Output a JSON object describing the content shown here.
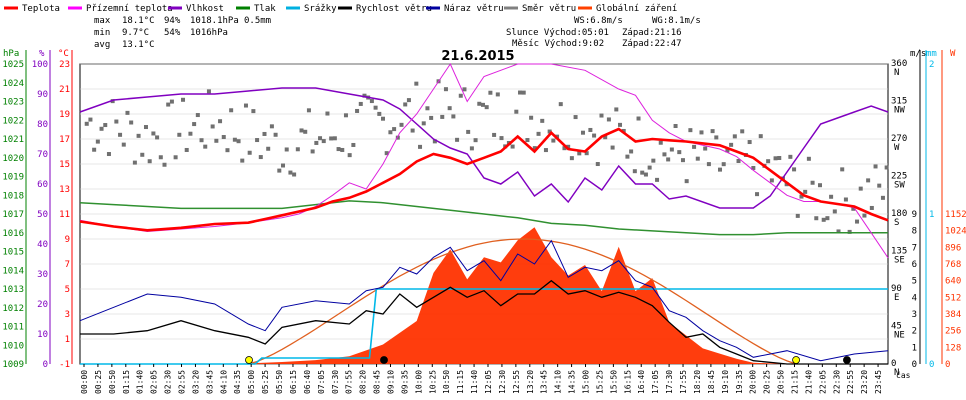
{
  "legend": [
    {
      "label": "Teplota",
      "color": "#ff0000"
    },
    {
      "label": "Přízemní teplota",
      "color": "#ff00ff"
    },
    {
      "label": "Vlhkost",
      "color": "#8000c0"
    },
    {
      "label": "Tlak",
      "color": "#008000"
    },
    {
      "label": "Srážky",
      "color": "#00b0e0"
    },
    {
      "label": "Rychlost větru",
      "color": "#000000"
    },
    {
      "label": "Náraz větru",
      "color": "#0000a0"
    },
    {
      "label": "Směr větru",
      "color": "#808080"
    },
    {
      "label": "Globální záření",
      "color": "#ff4000"
    }
  ],
  "stats": {
    "max_label": "max",
    "max_temp": "18.1°C",
    "max_hum": "94%",
    "max_press": "1018.1hPa",
    "rain": "0.5mm",
    "min_label": "min",
    "min_temp": "9.7°C",
    "min_hum": "54%",
    "min_press": "1016hPa",
    "avg_label": "avg",
    "avg_temp": "13.1°C",
    "ws": "WS:6.8m/s",
    "wg": "WG:8.1m/s",
    "sun": "Slunce Východ:05:01",
    "sun_set": "Západ:21:16",
    "moon": "Měsíc Východ:9:02",
    "moon_set": "Západ:22:47"
  },
  "colors": {
    "temp": "#ff0000",
    "ground": "#dd22dd",
    "hum": "#8000c0",
    "press": "#309030",
    "rain": "#00b8e8",
    "wind": "#000000",
    "gust": "#0000a0",
    "dir": "#707070",
    "rad": "#ff3300",
    "radcurve": "#e06020"
  },
  "chart_data": {
    "type": "line",
    "title": "21.6.2015",
    "xlabel": "čas",
    "x_ticks": [
      "00:00",
      "00:25",
      "00:50",
      "01:15",
      "01:40",
      "02:05",
      "02:30",
      "02:55",
      "03:20",
      "03:45",
      "04:10",
      "04:35",
      "05:00",
      "05:25",
      "05:50",
      "06:15",
      "06:40",
      "07:05",
      "07:30",
      "07:55",
      "08:20",
      "08:45",
      "09:10",
      "09:35",
      "10:00",
      "10:25",
      "10:50",
      "11:15",
      "11:40",
      "12:05",
      "12:30",
      "12:55",
      "13:20",
      "13:45",
      "14:10",
      "14:35",
      "15:00",
      "15:25",
      "15:50",
      "16:15",
      "16:40",
      "17:05",
      "17:30",
      "17:55",
      "18:20",
      "18:45",
      "19:10",
      "19:35",
      "20:00",
      "20:25",
      "20:50",
      "21:15",
      "21:40",
      "22:05",
      "22:30",
      "22:55",
      "23:20",
      "23:45"
    ],
    "axes": {
      "pressure": {
        "unit": "hPa",
        "range": [
          1009,
          1025
        ],
        "ticks": [
          "1025",
          "1024",
          "1023",
          "1022",
          "1021",
          "1020",
          "1019",
          "1018",
          "1017",
          "1016",
          "1015",
          "1014",
          "1013",
          "1012",
          "1011",
          "1010",
          "1009"
        ]
      },
      "humidity": {
        "unit": "%",
        "range": [
          0,
          100
        ],
        "ticks": [
          "100",
          "90",
          "80",
          "70",
          "60",
          "50",
          "40",
          "30",
          "20",
          "10",
          "0"
        ]
      },
      "temperature": {
        "unit": "°C",
        "range": [
          -1,
          23
        ],
        "ticks": [
          "23",
          "21",
          "19",
          "17",
          "15",
          "13",
          "11",
          "9",
          "7",
          "5",
          "3",
          "1",
          "-1"
        ]
      },
      "wind_direction": {
        "ticks": [
          "360 N",
          "315 NW",
          "270 W",
          "225 SW",
          "180 S",
          "135 SE",
          "90 E",
          "45 NE",
          "0 N"
        ]
      },
      "wind_speed": {
        "unit": "m/s",
        "range": [
          0,
          9
        ],
        "ticks": [
          "9",
          "8",
          "7",
          "6",
          "5",
          "4",
          "3",
          "2",
          "1",
          "0"
        ]
      },
      "rain": {
        "unit": "mm",
        "range": [
          0,
          2
        ],
        "ticks": [
          "2",
          "1",
          "0"
        ]
      },
      "radiation": {
        "unit": "W",
        "range": [
          0,
          1152
        ],
        "ticks": [
          "1152",
          "1024",
          "896",
          "768",
          "640",
          "512",
          "384",
          "256",
          "128",
          "0"
        ]
      }
    },
    "series": [
      {
        "name": "Teplota",
        "x_hours": [
          0,
          1,
          2,
          3,
          4,
          5,
          5.5,
          6,
          7,
          7.5,
          8,
          8.5,
          9,
          9.5,
          10,
          10.5,
          11,
          11.5,
          12,
          12.5,
          13,
          13.5,
          14,
          14.5,
          15,
          15.5,
          16,
          16.5,
          17,
          17.5,
          18,
          19,
          19.5,
          20,
          20.5,
          21,
          21.5,
          22,
          22.5,
          23,
          23.5,
          24
        ],
        "values": [
          10.4,
          10.0,
          9.7,
          9.9,
          10.2,
          10.3,
          10.6,
          10.9,
          11.5,
          12.0,
          12.3,
          12.8,
          13.5,
          14.2,
          15.2,
          15.8,
          15.5,
          15.0,
          15.5,
          16.0,
          17.2,
          16.0,
          17.5,
          16.2,
          16.0,
          17.2,
          17.8,
          16.8,
          17.0,
          16.9,
          16.8,
          16.5,
          16.0,
          15.5,
          14.5,
          13.5,
          12.5,
          12.0,
          11.8,
          11.6,
          11.0,
          10.5
        ]
      },
      {
        "name": "Přízemní teplota",
        "x_hours": [
          0,
          1,
          2,
          3,
          4,
          5,
          6,
          6.5,
          7,
          7.5,
          8,
          8.5,
          9,
          9.5,
          10,
          10.5,
          11,
          11.5,
          12,
          13,
          14,
          15,
          16,
          16.5,
          17,
          17.5,
          18,
          19,
          19.5,
          20,
          20.5,
          21,
          21.5,
          22,
          22.5,
          23,
          23.5,
          24
        ],
        "values": [
          10.5,
          10.0,
          9.6,
          9.8,
          10.0,
          10.3,
          10.7,
          11.0,
          11.6,
          12.5,
          13.5,
          13.0,
          15.0,
          17.5,
          19.0,
          21.0,
          23.0,
          20.0,
          22.0,
          23.0,
          23.0,
          22.5,
          21.0,
          20.5,
          18.5,
          17.5,
          16.8,
          16.2,
          15.6,
          14.5,
          13.5,
          12.5,
          12.0,
          12.0,
          11.8,
          11.5,
          9.5,
          7.5
        ]
      },
      {
        "name": "Vlhkost",
        "x_hours": [
          0,
          1,
          2,
          3,
          4,
          5,
          6,
          7,
          8,
          9,
          9.5,
          10,
          10.5,
          11,
          11.5,
          12,
          12.5,
          13,
          13.5,
          14,
          14.5,
          15,
          15.5,
          16,
          16.5,
          17,
          17.5,
          18,
          19,
          20,
          20.5,
          21,
          21.5,
          22,
          22.5,
          23,
          23.5,
          24
        ],
        "values": [
          84,
          88,
          89,
          90,
          90,
          91,
          92,
          92,
          90,
          88,
          85,
          80,
          75,
          72,
          70,
          62,
          60,
          64,
          56,
          60,
          54,
          62,
          58,
          66,
          60,
          60,
          55,
          56,
          52,
          52,
          56,
          64,
          72,
          80,
          82,
          84,
          86,
          84
        ]
      },
      {
        "name": "Tlak",
        "x_hours": [
          0,
          1,
          2,
          3,
          4,
          5,
          6,
          7,
          8,
          9,
          10,
          11,
          12,
          13,
          14,
          15,
          16,
          17,
          18,
          19,
          20,
          21,
          22,
          23,
          24
        ],
        "values": [
          1017.6,
          1017.5,
          1017.4,
          1017.3,
          1017.3,
          1017.3,
          1017.3,
          1017.5,
          1017.7,
          1017.6,
          1017.4,
          1017.2,
          1017.0,
          1016.8,
          1016.5,
          1016.4,
          1016.2,
          1016.1,
          1016.0,
          1015.9,
          1015.9,
          1016.0,
          1016.0,
          1016.0,
          1016.0
        ]
      },
      {
        "name": "Srážky",
        "x_hours": [
          0,
          5.2,
          5.4,
          8.6,
          8.8,
          24
        ],
        "values": [
          0.0,
          0.0,
          0.04,
          0.04,
          0.5,
          0.5
        ]
      },
      {
        "name": "Rychlost větru",
        "x_hours": [
          0,
          1,
          2,
          3,
          4,
          5,
          5.5,
          6,
          7,
          8,
          8.5,
          9,
          9.5,
          10,
          10.5,
          11,
          11.5,
          12,
          12.5,
          13,
          13.5,
          14,
          14.5,
          15,
          15.5,
          16,
          16.5,
          17,
          17.5,
          18,
          18.5,
          19,
          19.5,
          20,
          21,
          22,
          23,
          24
        ],
        "values": [
          1.8,
          1.8,
          2.0,
          2.6,
          2.0,
          1.6,
          1.2,
          2.2,
          2.6,
          2.4,
          3.2,
          3.0,
          4.2,
          3.4,
          4.0,
          4.6,
          4.0,
          4.4,
          3.5,
          4.2,
          4.2,
          5.0,
          4.2,
          4.4,
          4.0,
          4.3,
          4.0,
          3.5,
          2.5,
          1.6,
          1.8,
          1.0,
          0.6,
          0.2,
          0.0,
          0.0,
          0.0,
          0.0
        ]
      },
      {
        "name": "Náraz větru",
        "x_hours": [
          0,
          1,
          2,
          3,
          4,
          5,
          5.5,
          6,
          7,
          8,
          8.5,
          9,
          9.5,
          10,
          10.5,
          11,
          11.5,
          12,
          12.5,
          13,
          13.5,
          14,
          14.5,
          15,
          15.5,
          16,
          16.5,
          17,
          17.5,
          18,
          18.5,
          19,
          19.5,
          20,
          21,
          22,
          23,
          24
        ],
        "values": [
          2.6,
          3.4,
          4.2,
          4.0,
          3.6,
          2.4,
          2.0,
          3.4,
          3.8,
          3.6,
          4.4,
          4.6,
          5.8,
          5.4,
          6.4,
          7.0,
          5.6,
          6.2,
          5.0,
          6.6,
          6.0,
          7.4,
          5.2,
          5.8,
          5.6,
          6.2,
          5.0,
          4.6,
          3.2,
          2.8,
          2.0,
          1.4,
          1.0,
          0.4,
          0.8,
          0.2,
          0.6,
          0.8
        ]
      },
      {
        "name": "Směr větru",
        "x_hours": [
          0,
          1,
          2,
          3,
          4,
          5,
          6,
          7,
          8,
          9,
          10,
          11,
          12,
          13,
          14,
          15,
          16,
          17,
          18,
          19,
          20,
          21,
          22,
          23,
          24
        ],
        "values": [
          290,
          285,
          270,
          280,
          290,
          275,
          260,
          270,
          280,
          290,
          300,
          300,
          295,
          300,
          290,
          285,
          270,
          260,
          250,
          240,
          240,
          220,
          200,
          195,
          210
        ]
      },
      {
        "name": "Globální záření",
        "x_hours": [
          0,
          4.5,
          5,
          6,
          7,
          8,
          9,
          10,
          10.5,
          11,
          11.5,
          12,
          12.5,
          13,
          13.5,
          14,
          14.5,
          15,
          15.5,
          16,
          16.5,
          17,
          17.5,
          18,
          18.5,
          19,
          19.5,
          20,
          21,
          24
        ],
        "values": [
          0,
          0,
          5,
          15,
          30,
          60,
          150,
          330,
          700,
          880,
          650,
          820,
          780,
          950,
          1050,
          820,
          680,
          760,
          560,
          900,
          560,
          660,
          320,
          220,
          120,
          80,
          40,
          10,
          0,
          0
        ]
      }
    ]
  }
}
